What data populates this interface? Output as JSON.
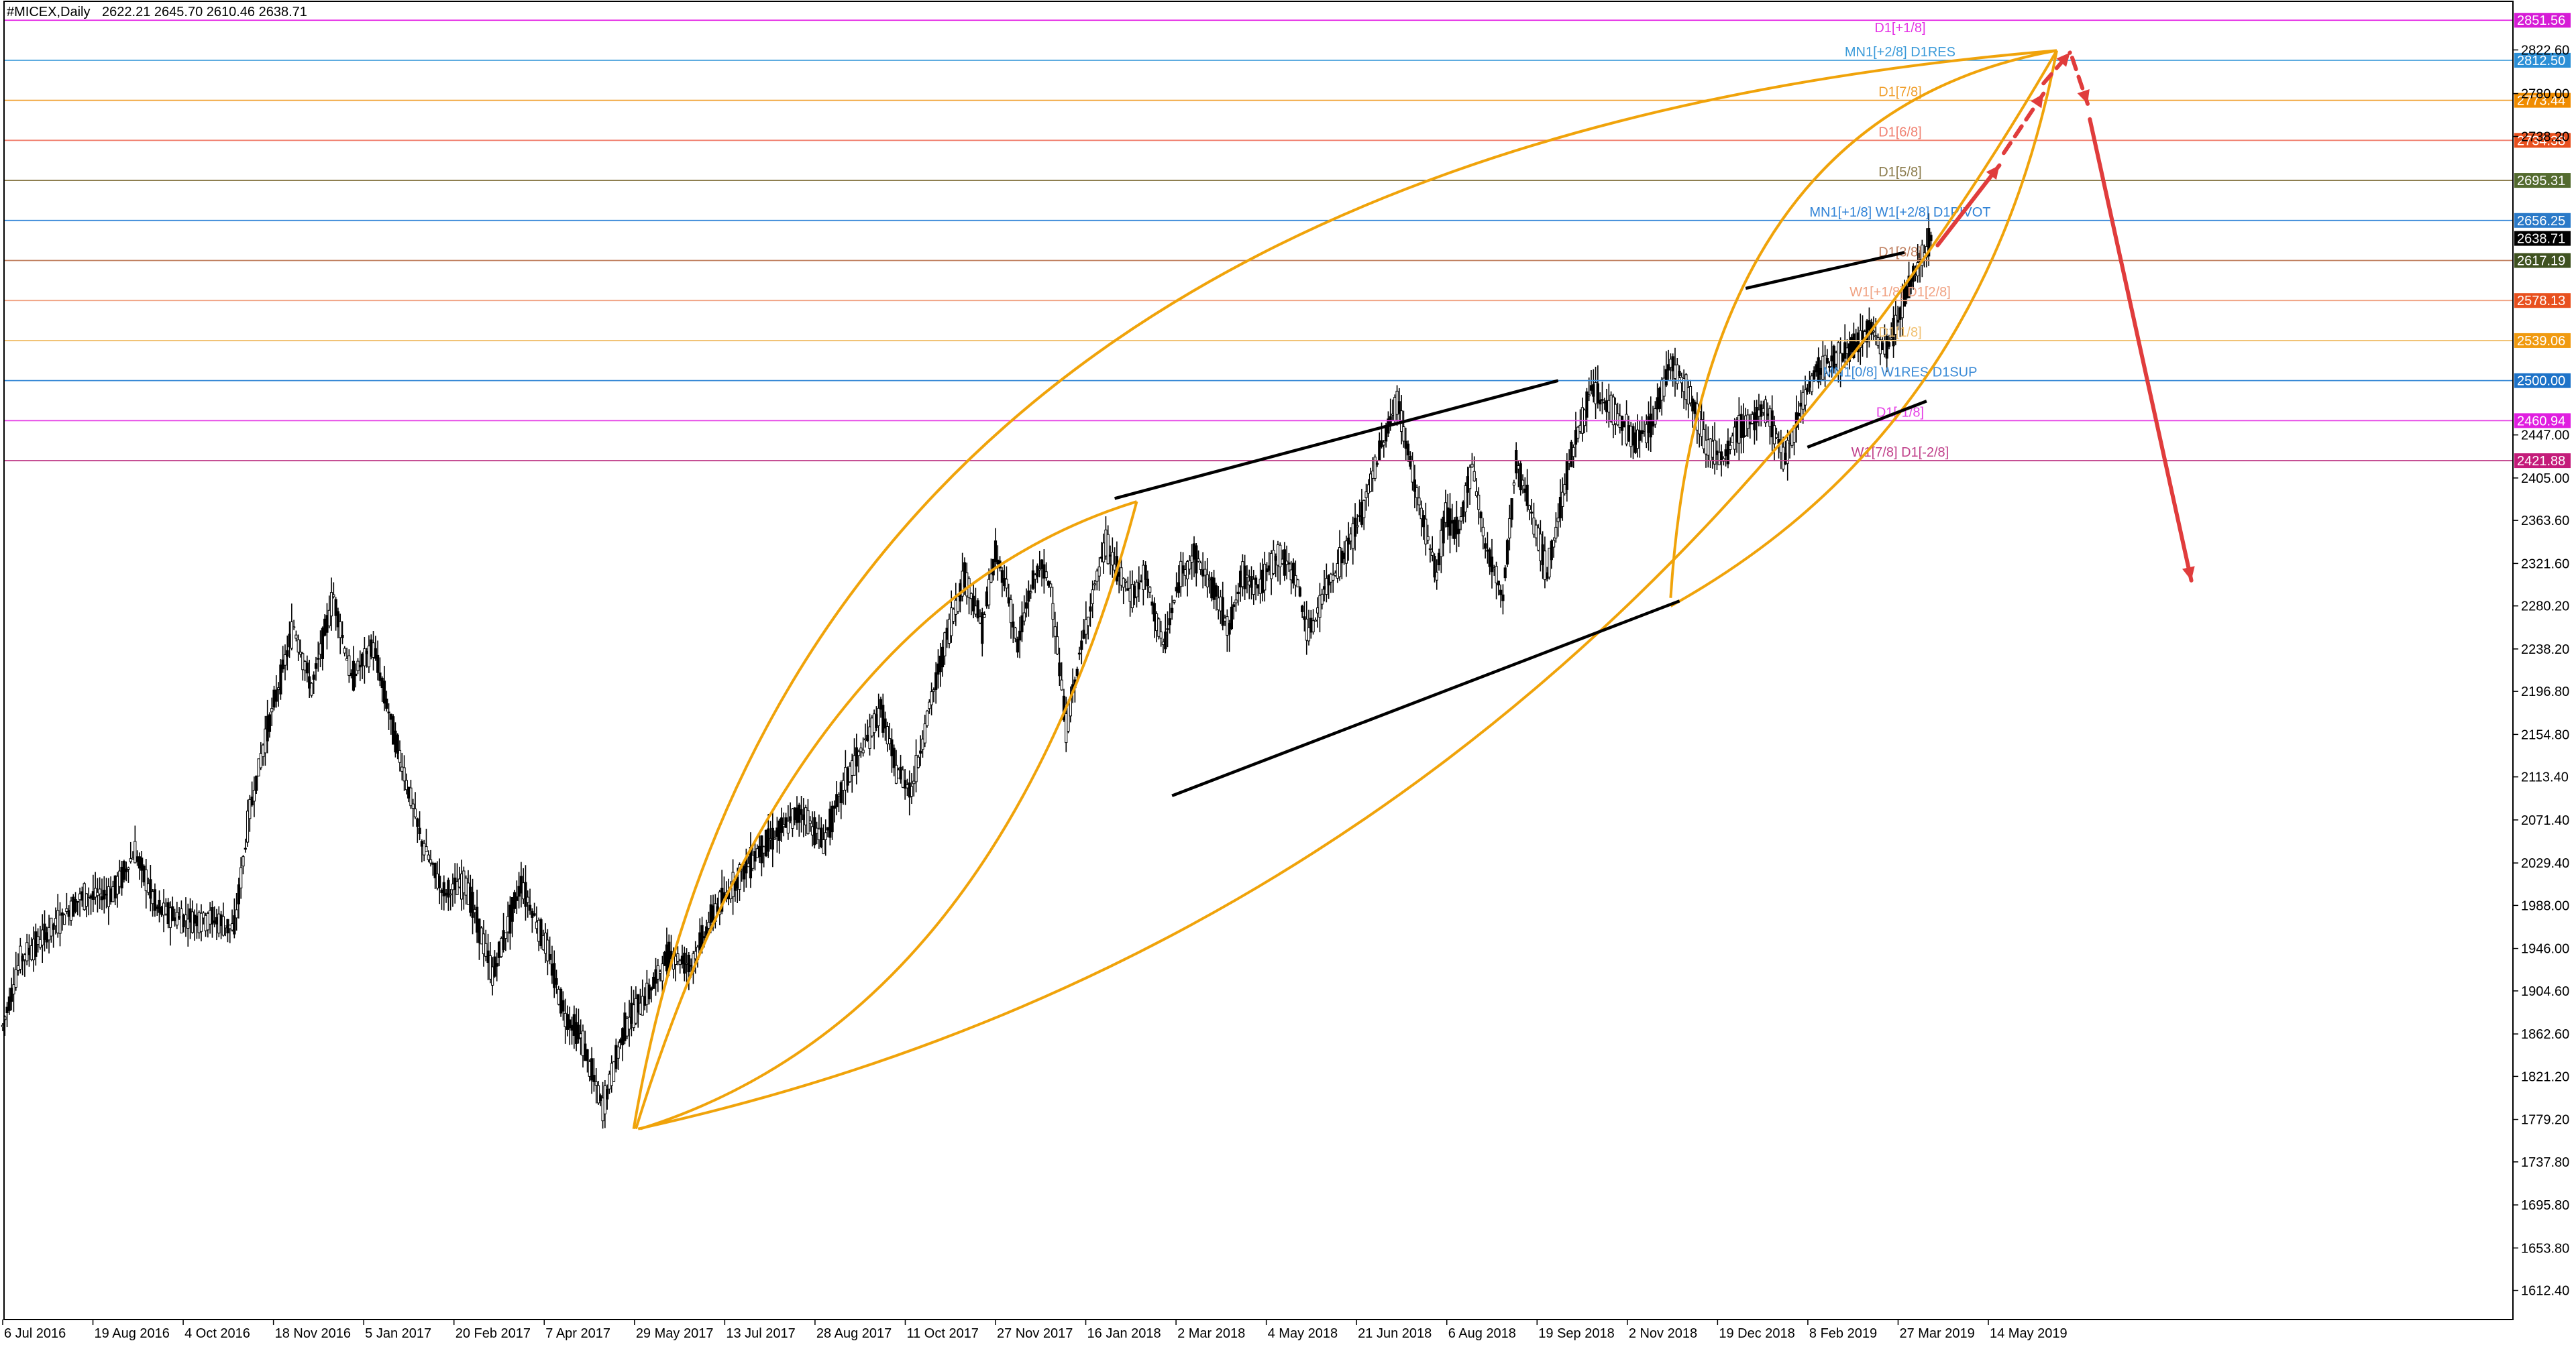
{
  "header": {
    "symbol": "#MICEX,Daily",
    "ohlc": "2622.21 2645.70 2610.46 2638.71"
  },
  "colors": {
    "background": "#ffffff",
    "candle_up_fill": "#ffffff",
    "candle_down_fill": "#000000",
    "candle_outline": "#000000",
    "curve": "#f0a30a",
    "channel": "#000000",
    "arrow": "#e03c3c",
    "axis": "#000000"
  },
  "chart_data": {
    "type": "candlestick",
    "title": "",
    "xlabel": "",
    "ylabel": "",
    "ylim": [
      1584,
      2870
    ],
    "grid": false,
    "x_ticks": [
      "6 Jul 2016",
      "19 Aug 2016",
      "4 Oct 2016",
      "18 Nov 2016",
      "5 Jan 2017",
      "20 Feb 2017",
      "7 Apr 2017",
      "29 May 2017",
      "13 Jul 2017",
      "28 Aug 2017",
      "11 Oct 2017",
      "27 Nov 2017",
      "16 Jan 2018",
      "2 Mar 2018",
      "4 May 2018",
      "21 Jun 2018",
      "6 Aug 2018",
      "19 Sep 2018",
      "2 Nov 2018",
      "19 Dec 2018",
      "8 Feb 2019",
      "27 Mar 2019",
      "14 May 2019"
    ],
    "y_ticks": [
      "2822.60",
      "2780.00",
      "2738.20",
      "2447.00",
      "2405.00",
      "2363.60",
      "2321.60",
      "2280.20",
      "2238.20",
      "2196.80",
      "2154.80",
      "2113.40",
      "2071.40",
      "2029.40",
      "1988.00",
      "1946.00",
      "1904.60",
      "1862.60",
      "1821.20",
      "1779.20",
      "1737.80",
      "1695.80",
      "1653.80",
      "1612.40"
    ],
    "last_price": "2638.71",
    "price_path": [
      [
        0,
        1870
      ],
      [
        8,
        1935
      ],
      [
        20,
        1960
      ],
      [
        35,
        1995
      ],
      [
        50,
        2000
      ],
      [
        60,
        2040
      ],
      [
        70,
        1985
      ],
      [
        80,
        1975
      ],
      [
        95,
        1975
      ],
      [
        105,
        1965
      ],
      [
        112,
        2080
      ],
      [
        120,
        2160
      ],
      [
        132,
        2260
      ],
      [
        140,
        2200
      ],
      [
        150,
        2290
      ],
      [
        158,
        2210
      ],
      [
        168,
        2240
      ],
      [
        178,
        2150
      ],
      [
        190,
        2050
      ],
      [
        200,
        2000
      ],
      [
        210,
        2010
      ],
      [
        222,
        1920
      ],
      [
        235,
        2010
      ],
      [
        246,
        1950
      ],
      [
        255,
        1880
      ],
      [
        262,
        1860
      ],
      [
        272,
        1790
      ],
      [
        282,
        1870
      ],
      [
        292,
        1900
      ],
      [
        302,
        1940
      ],
      [
        312,
        1930
      ],
      [
        322,
        1980
      ],
      [
        332,
        2010
      ],
      [
        342,
        2040
      ],
      [
        352,
        2060
      ],
      [
        362,
        2080
      ],
      [
        372,
        2050
      ],
      [
        382,
        2110
      ],
      [
        392,
        2150
      ],
      [
        398,
        2180
      ],
      [
        405,
        2120
      ],
      [
        412,
        2100
      ],
      [
        420,
        2180
      ],
      [
        428,
        2250
      ],
      [
        436,
        2310
      ],
      [
        444,
        2260
      ],
      [
        450,
        2330
      ],
      [
        455,
        2300
      ],
      [
        460,
        2240
      ],
      [
        465,
        2290
      ],
      [
        470,
        2320
      ],
      [
        475,
        2300
      ],
      [
        482,
        2160
      ],
      [
        488,
        2230
      ],
      [
        494,
        2290
      ],
      [
        500,
        2340
      ],
      [
        506,
        2310
      ],
      [
        512,
        2290
      ],
      [
        518,
        2310
      ],
      [
        526,
        2240
      ],
      [
        534,
        2310
      ],
      [
        540,
        2330
      ],
      [
        548,
        2300
      ],
      [
        556,
        2260
      ],
      [
        562,
        2310
      ],
      [
        570,
        2300
      ],
      [
        578,
        2330
      ],
      [
        586,
        2310
      ],
      [
        592,
        2250
      ],
      [
        600,
        2300
      ],
      [
        608,
        2330
      ],
      [
        616,
        2370
      ],
      [
        624,
        2430
      ],
      [
        632,
        2480
      ],
      [
        636,
        2440
      ],
      [
        642,
        2380
      ],
      [
        650,
        2310
      ],
      [
        654,
        2370
      ],
      [
        660,
        2350
      ],
      [
        666,
        2420
      ],
      [
        672,
        2340
      ],
      [
        680,
        2290
      ],
      [
        686,
        2420
      ],
      [
        692,
        2380
      ],
      [
        700,
        2310
      ],
      [
        710,
        2420
      ],
      [
        720,
        2490
      ],
      [
        730,
        2470
      ],
      [
        740,
        2440
      ],
      [
        748,
        2460
      ],
      [
        756,
        2520
      ],
      [
        764,
        2490
      ],
      [
        772,
        2440
      ],
      [
        780,
        2420
      ],
      [
        786,
        2450
      ],
      [
        792,
        2460
      ],
      [
        800,
        2470
      ],
      [
        808,
        2420
      ],
      [
        814,
        2470
      ],
      [
        822,
        2510
      ],
      [
        830,
        2520
      ],
      [
        838,
        2530
      ],
      [
        846,
        2550
      ],
      [
        854,
        2530
      ],
      [
        862,
        2580
      ],
      [
        870,
        2620
      ],
      [
        874,
        2640
      ]
    ],
    "projection_arrows": [
      {
        "start": [
          877,
          2632
        ],
        "end": [
          905,
          2710
        ],
        "style": "solid"
      },
      {
        "start": [
          907,
          2722
        ],
        "end": [
          925,
          2780
        ],
        "style": "dashed"
      },
      {
        "start": [
          925,
          2790
        ],
        "end": [
          937,
          2820
        ],
        "style": "dashed"
      },
      {
        "start": [
          938,
          2815
        ],
        "end": [
          945,
          2770
        ],
        "style": "dashed"
      },
      {
        "start": [
          946,
          2755
        ],
        "end": [
          992,
          2305
        ],
        "style": "solid"
      }
    ],
    "curves": [
      {
        "start": [
          287,
          1770
        ],
        "end": [
          514,
          2382
        ],
        "control": [
          360,
          2280
        ]
      },
      {
        "start": [
          289,
          1770
        ],
        "end": [
          514,
          2382
        ],
        "control": [
          452,
          1880
        ]
      },
      {
        "start": [
          286,
          1770
        ],
        "end": [
          931,
          2822
        ],
        "control": [
          360,
          2720
        ]
      },
      {
        "start": [
          288,
          1770
        ],
        "end": [
          931,
          2822
        ],
        "control": [
          700,
          1965
        ]
      },
      {
        "start": [
          756,
          2288
        ],
        "end": [
          931,
          2822
        ],
        "control": [
          770,
          2760
        ]
      },
      {
        "start": [
          756,
          2280
        ],
        "end": [
          931,
          2822
        ],
        "control": [
          898,
          2450
        ]
      }
    ],
    "channels": [
      {
        "start": [
          504,
          2385
        ],
        "end": [
          705,
          2500
        ]
      },
      {
        "start": [
          530,
          2095
        ],
        "end": [
          760,
          2285
        ]
      },
      {
        "start": [
          790,
          2590
        ],
        "end": [
          862,
          2625
        ]
      },
      {
        "start": [
          818,
          2435
        ],
        "end": [
          872,
          2480
        ]
      }
    ],
    "levels": [
      {
        "value": 2851.56,
        "tag": "2851.56",
        "label": "D1[+1/8]",
        "color": "#e533e5",
        "tagcolor": "#d61cd6"
      },
      {
        "value": 2812.5,
        "tag": "2812.50",
        "label": "MN1[+2/8] D1RES",
        "color": "#3a9ad9",
        "tagcolor": "#2b8fd6"
      },
      {
        "value": 2773.44,
        "tag": "2773.44",
        "label": "D1[7/8]",
        "color": "#f0a030",
        "tagcolor": "#f08c00"
      },
      {
        "value": 2734.38,
        "tag": "2734.38",
        "label": "D1[6/8]",
        "color": "#f08070",
        "tagcolor": "#e8501e"
      },
      {
        "value": 2695.31,
        "tag": "2695.31",
        "label": "D1[5/8]",
        "color": "#8a7a4a",
        "tagcolor": "#546b2f"
      },
      {
        "value": 2656.25,
        "tag": "2656.25",
        "label": "MN1[+1/8] W1[+2/8] D1PIVOT",
        "color": "#2f82d6",
        "tagcolor": "#2b7ac8"
      },
      {
        "value": 2617.19,
        "tag": "2617.19",
        "label": "D1[3/8]",
        "color": "#c08060",
        "tagcolor": "#3f5220"
      },
      {
        "value": 2578.13,
        "tag": "2578.13",
        "label": "W1[+1/8] D1[2/8]",
        "color": "#f0a080",
        "tagcolor": "#e8501e"
      },
      {
        "value": 2539.06,
        "tag": "2539.06",
        "label": "D1[1/8]",
        "color": "#f0c070",
        "tagcolor": "#f09a10"
      },
      {
        "value": 2500.0,
        "tag": "2500.00",
        "label": "MN1[0/8] W1RES D1SUP",
        "color": "#3a8ad6",
        "tagcolor": "#1e73c8"
      },
      {
        "value": 2460.94,
        "tag": "2460.94",
        "label": "D1[-1/8]",
        "color": "#e53de5",
        "tagcolor": "#e01ee0"
      },
      {
        "value": 2421.88,
        "tag": "2421.88",
        "label": "W1[7/8] D1[-2/8]",
        "color": "#c0408a",
        "tagcolor": "#c41c7a"
      }
    ]
  }
}
